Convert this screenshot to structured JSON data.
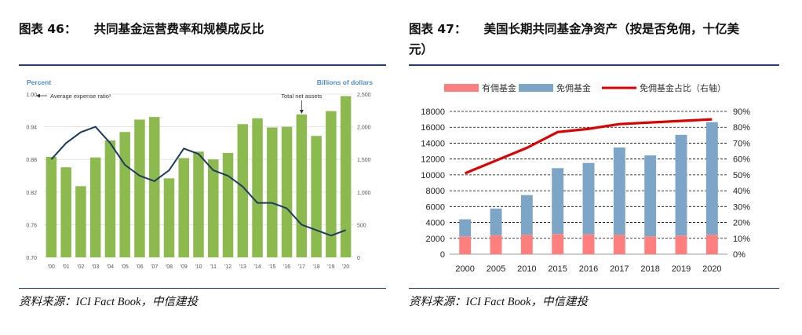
{
  "left": {
    "figure_label": "图表 46：",
    "figure_title": "共同基金运营费率和规模成反比",
    "source": "资料来源：ICI Fact Book，中信建投",
    "chart_data": {
      "type": "bar",
      "left_axis_title": "Percent",
      "right_axis_title": "Billions of dollars",
      "categories": [
        "'00",
        "'01",
        "'02",
        "'03",
        "'04",
        "'05",
        "'06",
        "'07",
        "'08",
        "'09",
        "'10",
        "'11",
        "'12",
        "'13",
        "'14",
        "'15",
        "'16",
        "'17",
        "'18",
        "'19",
        "'20"
      ],
      "series": [
        {
          "name": "Total net assets",
          "axis": "right",
          "kind": "bar",
          "color": "#8dba4e",
          "values": [
            1540,
            1380,
            1090,
            1530,
            1790,
            1920,
            2110,
            2150,
            1210,
            1520,
            1620,
            1500,
            1600,
            2040,
            2130,
            1990,
            2000,
            2190,
            1860,
            2240,
            2470
          ]
        },
        {
          "name": "Average expense ratio",
          "axis": "left",
          "kind": "line",
          "color": "#1e3a5f",
          "values": [
            0.88,
            0.91,
            0.93,
            0.94,
            0.91,
            0.87,
            0.85,
            0.84,
            0.86,
            0.9,
            0.89,
            0.86,
            0.85,
            0.83,
            0.8,
            0.8,
            0.79,
            0.76,
            0.75,
            0.74,
            0.75
          ]
        }
      ],
      "annotations": [
        {
          "text": "Average expense ratio¹",
          "points_to": "left axis"
        },
        {
          "text": "Total net assets",
          "points_to": "'17"
        }
      ],
      "left_ticks": [
        "1.00",
        "0.94",
        "0.88",
        "0.82",
        "0.76",
        "0.70"
      ],
      "left_ylim": [
        0.7,
        1.0
      ],
      "right_ticks": [
        "2,500",
        "2,000",
        "1,500",
        "1,000",
        "500",
        "0"
      ],
      "right_ylim": [
        0,
        2500
      ],
      "grid": true,
      "accent_color": "#4f8fc7"
    }
  },
  "right": {
    "figure_label": "图表 47：",
    "figure_title_line1": "美国长期共同基金净资产（按是否免佣，十亿美",
    "figure_title_line2": "元）",
    "source": "资料来源：ICI Fact Book，中信建投",
    "chart_data": {
      "type": "bar",
      "categories": [
        "2000",
        "2005",
        "2010",
        "2015",
        "2016",
        "2017",
        "2018",
        "2019",
        "2020"
      ],
      "stacked": true,
      "series": [
        {
          "name": "有佣基金",
          "axis": "left",
          "kind": "bar",
          "color": "#ff7f7f",
          "values": [
            2250,
            2400,
            2450,
            2550,
            2500,
            2450,
            2250,
            2350,
            2450
          ]
        },
        {
          "name": "免佣基金",
          "axis": "left",
          "kind": "bar",
          "color": "#7da6c6",
          "values": [
            2150,
            3350,
            5000,
            8300,
            9000,
            11000,
            10200,
            12700,
            14200
          ]
        },
        {
          "name": "免佣基金占比（右轴）",
          "axis": "right",
          "kind": "line",
          "color": "#e00000",
          "values": [
            0.51,
            0.59,
            0.67,
            0.77,
            0.79,
            0.82,
            0.83,
            0.84,
            0.85
          ]
        }
      ],
      "left_ticks": [
        "18000",
        "16000",
        "14000",
        "12000",
        "10000",
        "8000",
        "6000",
        "4000",
        "2000",
        "0"
      ],
      "left_ylim": [
        0,
        18000
      ],
      "right_ticks": [
        "90%",
        "80%",
        "70%",
        "60%",
        "50%",
        "40%",
        "30%",
        "20%",
        "10%",
        "0%"
      ],
      "right_ylim": [
        0,
        0.9
      ],
      "legend_position": "top",
      "grid": "dashed"
    }
  }
}
